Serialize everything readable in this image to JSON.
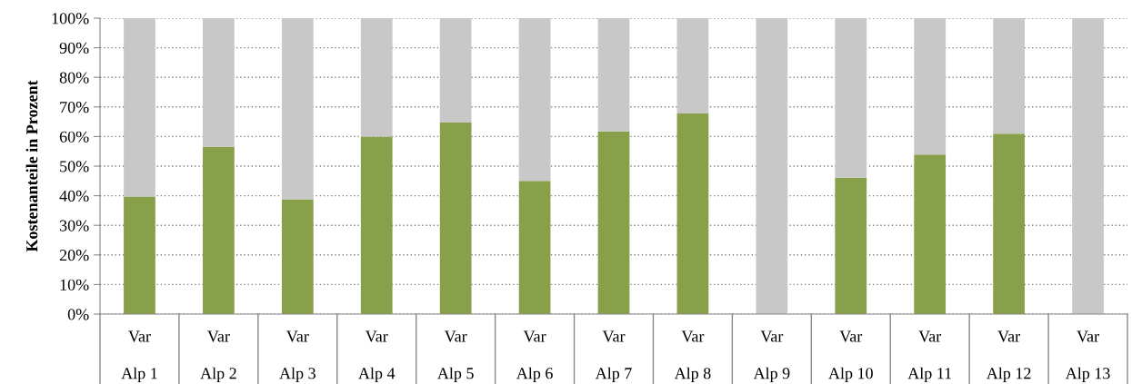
{
  "chart_data": {
    "type": "bar",
    "stacked": true,
    "ylabel": "Kostenanteile in Prozent",
    "categories": [
      "Var\nAlp 1",
      "Var\nAlp 2",
      "Var\nAlp 3",
      "Var\nAlp 4",
      "Var\nAlp 5",
      "Var\nAlp 6",
      "Var\nAlp 7",
      "Var\nAlp 8",
      "Var\nAlp 9",
      "Var\nAlp 10",
      "Var\nAlp 11",
      "Var\nAlp 12",
      "Var\nAlp 13"
    ],
    "series": [
      {
        "color": "#88a04a",
        "values": [
          39.7,
          56.5,
          38.8,
          60.0,
          64.7,
          45.0,
          61.7,
          67.8,
          0,
          46.1,
          53.9,
          61.0,
          0
        ]
      },
      {
        "color": "#c8c8c8",
        "values": [
          60.3,
          43.5,
          61.2,
          40.0,
          35.3,
          55.0,
          38.3,
          32.2,
          100,
          53.9,
          46.1,
          39.0,
          100
        ]
      }
    ],
    "ylim": [
      0,
      100
    ],
    "yticks": [
      {
        "value": 0,
        "label": "0%"
      },
      {
        "value": 10,
        "label": "10%"
      },
      {
        "value": 20,
        "label": "20%"
      },
      {
        "value": 30,
        "label": "30%"
      },
      {
        "value": 40,
        "label": "40%"
      },
      {
        "value": 50,
        "label": "50%"
      },
      {
        "value": 60,
        "label": "60%"
      },
      {
        "value": 70,
        "label": "70%"
      },
      {
        "value": 80,
        "label": "80%"
      },
      {
        "value": 90,
        "label": "90%"
      },
      {
        "value": 100,
        "label": "100%"
      }
    ],
    "grid": "y"
  }
}
